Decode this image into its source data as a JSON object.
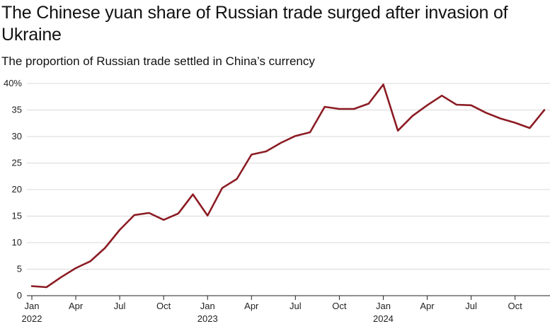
{
  "header": {
    "title": "The Chinese yuan share of Russian trade surged after invasion of Ukraine",
    "subtitle": "The proportion of Russian trade settled in China’s currency"
  },
  "chart_data": {
    "type": "line",
    "title": "The Chinese yuan share of Russian trade surged after invasion of Ukraine",
    "subtitle": "The proportion of Russian trade settled in China’s currency",
    "xlabel": "",
    "ylabel": "",
    "y_ticks": [
      "40%",
      "35",
      "30",
      "25",
      "20",
      "15",
      "10",
      "5",
      "0"
    ],
    "ylim": [
      0,
      40
    ],
    "x_ticks": [
      {
        "month": "Jan",
        "year": "2022",
        "index": 0
      },
      {
        "month": "Apr",
        "year": "",
        "index": 3
      },
      {
        "month": "Jul",
        "year": "",
        "index": 6
      },
      {
        "month": "Oct",
        "year": "",
        "index": 9
      },
      {
        "month": "Jan",
        "year": "2023",
        "index": 12
      },
      {
        "month": "Apr",
        "year": "",
        "index": 15
      },
      {
        "month": "Jul",
        "year": "",
        "index": 18
      },
      {
        "month": "Oct",
        "year": "",
        "index": 21
      },
      {
        "month": "Jan",
        "year": "2024",
        "index": 24
      },
      {
        "month": "Apr",
        "year": "",
        "index": 27
      },
      {
        "month": "Jul",
        "year": "",
        "index": 30
      },
      {
        "month": "Oct",
        "year": "",
        "index": 33
      }
    ],
    "x": [
      "2022-01",
      "2022-02",
      "2022-03",
      "2022-04",
      "2022-05",
      "2022-06",
      "2022-07",
      "2022-08",
      "2022-09",
      "2022-10",
      "2022-11",
      "2022-12",
      "2023-01",
      "2023-02",
      "2023-03",
      "2023-04",
      "2023-05",
      "2023-06",
      "2023-07",
      "2023-08",
      "2023-09",
      "2023-10",
      "2023-11",
      "2023-12",
      "2024-01",
      "2024-02",
      "2024-03",
      "2024-04",
      "2024-05",
      "2024-06",
      "2024-07",
      "2024-08",
      "2024-09",
      "2024-10",
      "2024-11",
      "2024-12"
    ],
    "series": [
      {
        "color": "#8c1c24",
        "values": [
          1.8,
          1.6,
          3.5,
          5.2,
          6.5,
          9.0,
          12.4,
          15.2,
          15.6,
          14.3,
          15.5,
          19.1,
          15.1,
          20.3,
          22.0,
          26.6,
          27.2,
          28.8,
          30.1,
          30.8,
          35.6,
          35.2,
          35.2,
          36.2,
          39.8,
          31.1,
          33.9,
          35.9,
          37.7,
          36.0,
          35.9,
          34.5,
          33.4,
          32.6,
          31.6,
          35.0
        ]
      }
    ],
    "grid": "horizontal",
    "legend": "none"
  }
}
